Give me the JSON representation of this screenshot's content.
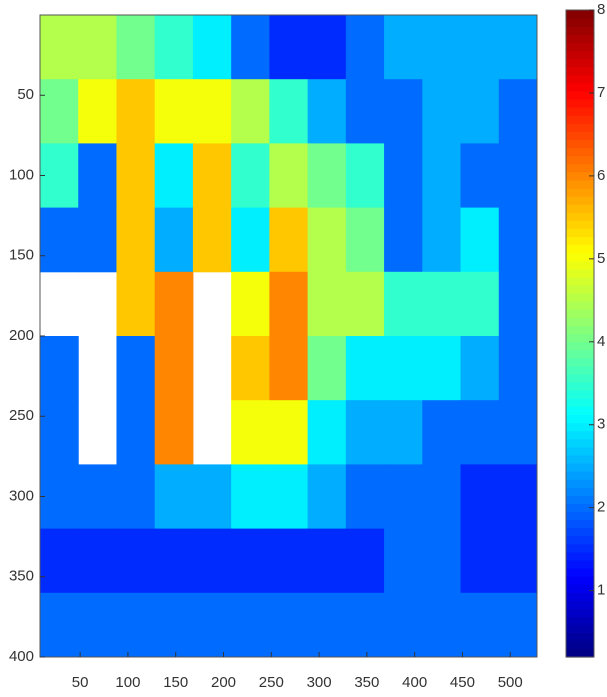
{
  "chart_data": {
    "type": "heatmap",
    "colormap": "jet",
    "x": [
      8,
      48,
      88,
      128,
      168,
      208,
      248,
      288,
      328,
      368,
      408,
      448,
      488,
      528
    ],
    "y": [
      0,
      40,
      80,
      120,
      160,
      200,
      240,
      280,
      320,
      360,
      400
    ],
    "z": [
      [
        4.5,
        4.5,
        4,
        3.5,
        3,
        2,
        1.5,
        1.5,
        2,
        2.5,
        2.5,
        2.5,
        2.5
      ],
      [
        4,
        5,
        5.5,
        5,
        5,
        4.5,
        3.5,
        2.5,
        2,
        2,
        2.5,
        2.5,
        2
      ],
      [
        3.5,
        2,
        5.5,
        3,
        5.5,
        3.5,
        4.5,
        4,
        3.5,
        2,
        2.5,
        2,
        2
      ],
      [
        2,
        2,
        5.5,
        2.5,
        5.5,
        3,
        5.5,
        4.5,
        4,
        2,
        2.5,
        3,
        2
      ],
      [
        null,
        null,
        5.5,
        6,
        null,
        5,
        6,
        4.5,
        4.5,
        3.5,
        3.5,
        3.5,
        2
      ],
      [
        2,
        null,
        2,
        6,
        null,
        5.5,
        6,
        4,
        3,
        3,
        3,
        2.5,
        2
      ],
      [
        2,
        null,
        2,
        6,
        null,
        5,
        5,
        3,
        2.5,
        2.5,
        2,
        2,
        2
      ],
      [
        2,
        2,
        2,
        2.5,
        2.5,
        3,
        3,
        2.5,
        2,
        2,
        2,
        1.5,
        1.5
      ],
      [
        1.5,
        1.5,
        1.5,
        1.5,
        1.5,
        1.5,
        1.5,
        1.5,
        1.5,
        2,
        2,
        1.5,
        1.5
      ],
      [
        2,
        2,
        2,
        2,
        2,
        2,
        2,
        2,
        2,
        2,
        2,
        2,
        2
      ]
    ],
    "xlim": [
      8,
      528
    ],
    "xticks": [
      50,
      100,
      150,
      200,
      250,
      300,
      350,
      400,
      450,
      500
    ],
    "ylim": [
      0,
      400
    ],
    "y_reversed": true,
    "yticks": [
      50,
      100,
      150,
      200,
      250,
      300,
      350,
      400
    ],
    "clim": [
      0.2,
      8
    ],
    "cticks": [
      1,
      2,
      3,
      4,
      5,
      6,
      7,
      8
    ]
  }
}
